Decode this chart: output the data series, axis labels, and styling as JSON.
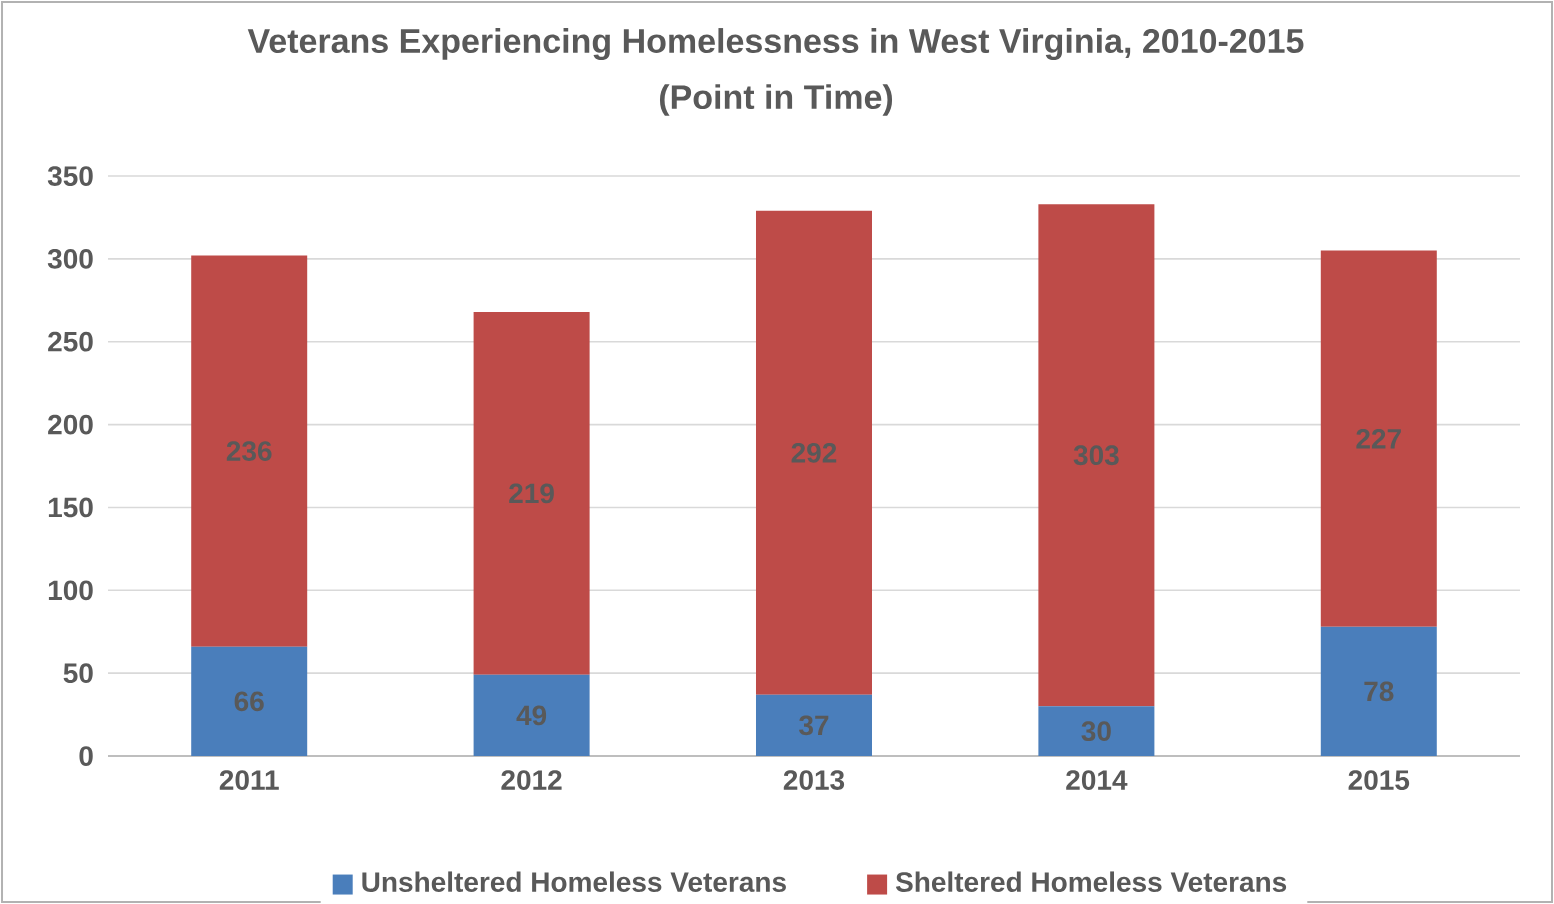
{
  "chart_data": {
    "type": "bar",
    "title": "Veterans Experiencing Homelessness in West Virginia, 2010-2015",
    "subtitle": "(Point in Time)",
    "categories": [
      "2011",
      "2012",
      "2013",
      "2014",
      "2015"
    ],
    "stacked": true,
    "series": [
      {
        "name": "Unsheltered Homeless Veterans",
        "color": "#4a7ebb",
        "values": [
          66,
          49,
          37,
          30,
          78
        ]
      },
      {
        "name": "Sheltered Homeless Veterans",
        "color": "#be4b48",
        "values": [
          236,
          219,
          292,
          303,
          227
        ]
      }
    ],
    "ylim": [
      0,
      350
    ],
    "yticks": [
      0,
      50,
      100,
      150,
      200,
      250,
      300,
      350
    ],
    "grid": "y",
    "legend": "bottom",
    "data_labels": true
  }
}
